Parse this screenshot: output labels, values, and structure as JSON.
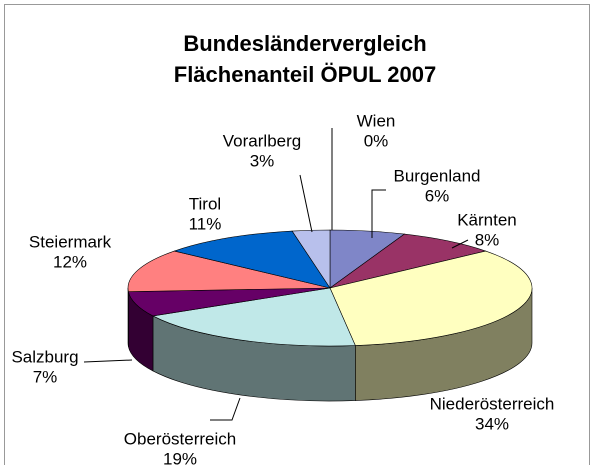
{
  "chart_data": {
    "type": "pie",
    "title": "Bundesländervergleich",
    "subtitle": "Flächenanteil ÖPUL 2007",
    "categories": [
      "Wien",
      "Burgenland",
      "Kärnten",
      "Niederösterreich",
      "Oberösterreich",
      "Salzburg",
      "Steiermark",
      "Tirol",
      "Vorarlberg"
    ],
    "values": [
      0,
      6,
      8,
      34,
      19,
      7,
      12,
      11,
      3
    ],
    "value_labels": [
      "0%",
      "6%",
      "8%",
      "34%",
      "19%",
      "7%",
      "12%",
      "11%",
      "3%"
    ],
    "colors": [
      "#e0e0f8",
      "#7f86c8",
      "#993366",
      "#ffffc0",
      "#c0e8e8",
      "#660066",
      "#ff8080",
      "#0066cc",
      "#b8c0ec"
    ]
  }
}
